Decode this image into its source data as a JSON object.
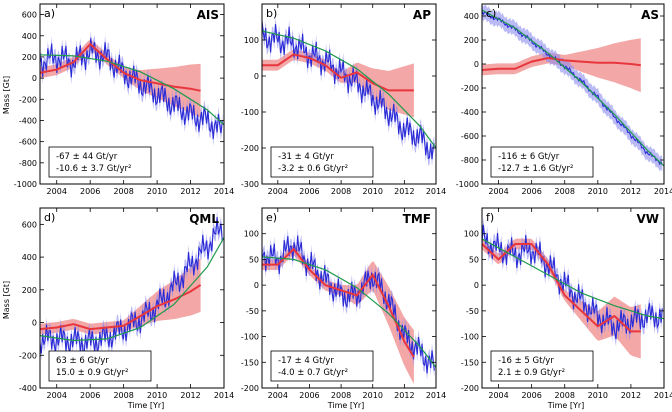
{
  "figure": {
    "ylabel": "Mass [Gt]",
    "xlabel": "Time [Yr]",
    "colors": {
      "grace": "#2b2bd6",
      "grace_band": "#8c8cf0",
      "model": "#e8363d",
      "model_band": "#f08a8a",
      "fit": "#1f9a4c"
    }
  },
  "chart_data": [
    {
      "type": "line",
      "panel_tag": "a)",
      "title": "AIS",
      "xlim": [
        2003,
        2014
      ],
      "ylim": [
        -1000,
        700
      ],
      "yticks": [
        -1000,
        -800,
        -600,
        -400,
        -200,
        0,
        200,
        400,
        600
      ],
      "xticks": [
        2004,
        2006,
        2008,
        2010,
        2012,
        2014
      ],
      "fit_lines": [
        "-67 ± 44 Gt/yr",
        "-10.6 ± 3.7 Gt/yr²"
      ],
      "series": [
        {
          "key": "grace",
          "x": [
            2003.0,
            2004.0,
            2005.0,
            2006.0,
            2007.0,
            2008.0,
            2009.0,
            2010.0,
            2011.0,
            2012.0,
            2013.0,
            2013.9
          ],
          "y": [
            150,
            200,
            150,
            250,
            200,
            50,
            -50,
            -150,
            -250,
            -350,
            -400,
            -500
          ]
        },
        {
          "key": "model",
          "x": [
            2003.0,
            2004.0,
            2005.0,
            2006.0,
            2007.0,
            2008.0,
            2009.0,
            2010.0,
            2011.0,
            2012.0,
            2012.6
          ],
          "y": [
            50,
            80,
            150,
            320,
            180,
            50,
            -20,
            -50,
            -80,
            -100,
            -120
          ]
        },
        {
          "key": "fit",
          "x": [
            2003.0,
            2005.0,
            2007.0,
            2009.0,
            2011.0,
            2013.0,
            2014.0
          ],
          "y": [
            220,
            210,
            160,
            60,
            -100,
            -300,
            -440
          ]
        }
      ]
    },
    {
      "type": "line",
      "panel_tag": "b)",
      "title": "AP",
      "xlim": [
        2003,
        2014
      ],
      "ylim": [
        -300,
        200
      ],
      "yticks": [
        -300,
        -200,
        -100,
        0,
        100
      ],
      "xticks": [
        2004,
        2006,
        2008,
        2010,
        2012,
        2014
      ],
      "fit_lines": [
        "-31 ±  4 Gt/yr",
        "-3.2 ± 0.6 Gt/yr²"
      ],
      "series": [
        {
          "key": "grace",
          "x": [
            2003.0,
            2004.0,
            2005.0,
            2006.0,
            2007.0,
            2008.0,
            2009.0,
            2010.0,
            2011.0,
            2012.0,
            2013.0,
            2013.9
          ],
          "y": [
            110,
            100,
            90,
            60,
            40,
            10,
            -20,
            -60,
            -100,
            -150,
            -170,
            -220
          ]
        },
        {
          "key": "model",
          "x": [
            2003.0,
            2004.0,
            2005.0,
            2006.0,
            2007.0,
            2008.0,
            2009.0,
            2010.0,
            2011.0,
            2012.0,
            2012.6
          ],
          "y": [
            30,
            30,
            60,
            50,
            30,
            -5,
            10,
            -20,
            -40,
            -40,
            -40
          ]
        },
        {
          "key": "fit",
          "x": [
            2003.0,
            2005.0,
            2007.0,
            2009.0,
            2011.0,
            2013.0,
            2014.0
          ],
          "y": [
            125,
            105,
            70,
            20,
            -50,
            -140,
            -200
          ]
        }
      ]
    },
    {
      "type": "line",
      "panel_tag": "c)",
      "title": "AS",
      "xlim": [
        2003,
        2014
      ],
      "ylim": [
        -1000,
        500
      ],
      "yticks": [
        -1000,
        -800,
        -600,
        -400,
        -200,
        0,
        200,
        400
      ],
      "xticks": [
        2004,
        2006,
        2008,
        2010,
        2012,
        2014
      ],
      "fit_lines": [
        "-116 ±  6 Gt/yr",
        "-12.7 ± 1.6 Gt/yr²"
      ],
      "series": [
        {
          "key": "grace",
          "x": [
            2003.0,
            2004.0,
            2005.0,
            2006.0,
            2007.0,
            2008.0,
            2009.0,
            2010.0,
            2011.0,
            2012.0,
            2013.0,
            2013.9
          ],
          "y": [
            430,
            370,
            290,
            190,
            80,
            -20,
            -140,
            -280,
            -440,
            -590,
            -740,
            -830
          ]
        },
        {
          "key": "model",
          "x": [
            2003.0,
            2004.0,
            2005.0,
            2006.0,
            2007.0,
            2008.0,
            2009.0,
            2010.0,
            2011.0,
            2012.0,
            2012.6
          ],
          "y": [
            -50,
            -40,
            -40,
            20,
            50,
            30,
            20,
            10,
            10,
            0,
            -10
          ]
        },
        {
          "key": "fit",
          "x": [
            2003.0,
            2005.0,
            2007.0,
            2009.0,
            2011.0,
            2013.0,
            2014.0
          ],
          "y": [
            450,
            300,
            90,
            -150,
            -420,
            -720,
            -850
          ]
        }
      ]
    },
    {
      "type": "line",
      "panel_tag": "d)",
      "title": "QML",
      "xlim": [
        2003,
        2014
      ],
      "ylim": [
        -400,
        700
      ],
      "yticks": [
        -400,
        -200,
        0,
        200,
        400,
        600
      ],
      "xticks": [
        2004,
        2006,
        2008,
        2010,
        2012,
        2014
      ],
      "fit_lines": [
        "63 ±  6 Gt/yr",
        "15.0 ± 0.9 Gt/yr²"
      ],
      "series": [
        {
          "key": "grace",
          "x": [
            2003.0,
            2004.0,
            2005.0,
            2006.0,
            2007.0,
            2008.0,
            2009.0,
            2010.0,
            2011.0,
            2012.0,
            2013.0,
            2013.9
          ],
          "y": [
            -100,
            -100,
            -110,
            -120,
            -90,
            -40,
            20,
            100,
            220,
            350,
            470,
            590
          ]
        },
        {
          "key": "model",
          "x": [
            2003.0,
            2004.0,
            2005.0,
            2006.0,
            2007.0,
            2008.0,
            2009.0,
            2010.0,
            2011.0,
            2012.0,
            2012.6
          ],
          "y": [
            -40,
            -30,
            -10,
            -40,
            -30,
            -20,
            40,
            100,
            140,
            190,
            230
          ]
        },
        {
          "key": "fit",
          "x": [
            2003.0,
            2005.0,
            2007.0,
            2009.0,
            2011.0,
            2013.0,
            2014.0
          ],
          "y": [
            -80,
            -110,
            -100,
            -30,
            110,
            340,
            520
          ]
        }
      ]
    },
    {
      "type": "line",
      "panel_tag": "e)",
      "title": "TMF",
      "xlim": [
        2003,
        2014
      ],
      "ylim": [
        -200,
        150
      ],
      "yticks": [
        -200,
        -150,
        -100,
        -50,
        0,
        50,
        100
      ],
      "xticks": [
        2004,
        2006,
        2008,
        2010,
        2012,
        2014
      ],
      "fit_lines": [
        "-17 ±  4 Gt/yr",
        "-4.0 ± 0.7 Gt/yr²"
      ],
      "series": [
        {
          "key": "grace",
          "x": [
            2003.0,
            2004.0,
            2005.0,
            2006.0,
            2007.0,
            2008.0,
            2009.0,
            2010.0,
            2011.0,
            2012.0,
            2013.0,
            2013.9
          ],
          "y": [
            60,
            50,
            80,
            40,
            10,
            -20,
            -20,
            20,
            -30,
            -100,
            -130,
            -160
          ]
        },
        {
          "key": "model",
          "x": [
            2003.0,
            2004.0,
            2005.0,
            2006.0,
            2007.0,
            2008.0,
            2009.0,
            2010.0,
            2011.0,
            2012.0,
            2012.6
          ],
          "y": [
            40,
            40,
            70,
            30,
            0,
            -10,
            -20,
            20,
            -40,
            -110,
            -140
          ]
        },
        {
          "key": "fit",
          "x": [
            2003.0,
            2005.0,
            2007.0,
            2009.0,
            2011.0,
            2013.0,
            2014.0
          ],
          "y": [
            55,
            50,
            30,
            -5,
            -55,
            -120,
            -160
          ]
        }
      ]
    },
    {
      "type": "line",
      "panel_tag": "f)",
      "title": "VW",
      "xlim": [
        2003,
        2014
      ],
      "ylim": [
        -200,
        150
      ],
      "yticks": [
        -200,
        -150,
        -100,
        -50,
        0,
        50,
        100
      ],
      "xticks": [
        2004,
        2006,
        2008,
        2010,
        2012,
        2014
      ],
      "fit_lines": [
        "-16 ±  5 Gt/yr",
        "2.1 ± 0.9 Gt/yr²"
      ],
      "series": [
        {
          "key": "grace",
          "x": [
            2003.0,
            2004.0,
            2005.0,
            2006.0,
            2007.0,
            2008.0,
            2009.0,
            2010.0,
            2011.0,
            2012.0,
            2013.0,
            2013.9
          ],
          "y": [
            90,
            70,
            60,
            70,
            40,
            0,
            -30,
            -60,
            -80,
            -70,
            -60,
            -60
          ]
        },
        {
          "key": "model",
          "x": [
            2003.0,
            2004.0,
            2005.0,
            2006.0,
            2007.0,
            2008.0,
            2009.0,
            2010.0,
            2011.0,
            2012.0,
            2012.6
          ],
          "y": [
            80,
            50,
            80,
            80,
            40,
            -20,
            -50,
            -80,
            -60,
            -90,
            -90
          ]
        },
        {
          "key": "fit",
          "x": [
            2003.0,
            2005.0,
            2007.0,
            2009.0,
            2011.0,
            2013.0,
            2014.0
          ],
          "y": [
            90,
            55,
            20,
            -15,
            -40,
            -60,
            -65
          ]
        }
      ]
    }
  ]
}
